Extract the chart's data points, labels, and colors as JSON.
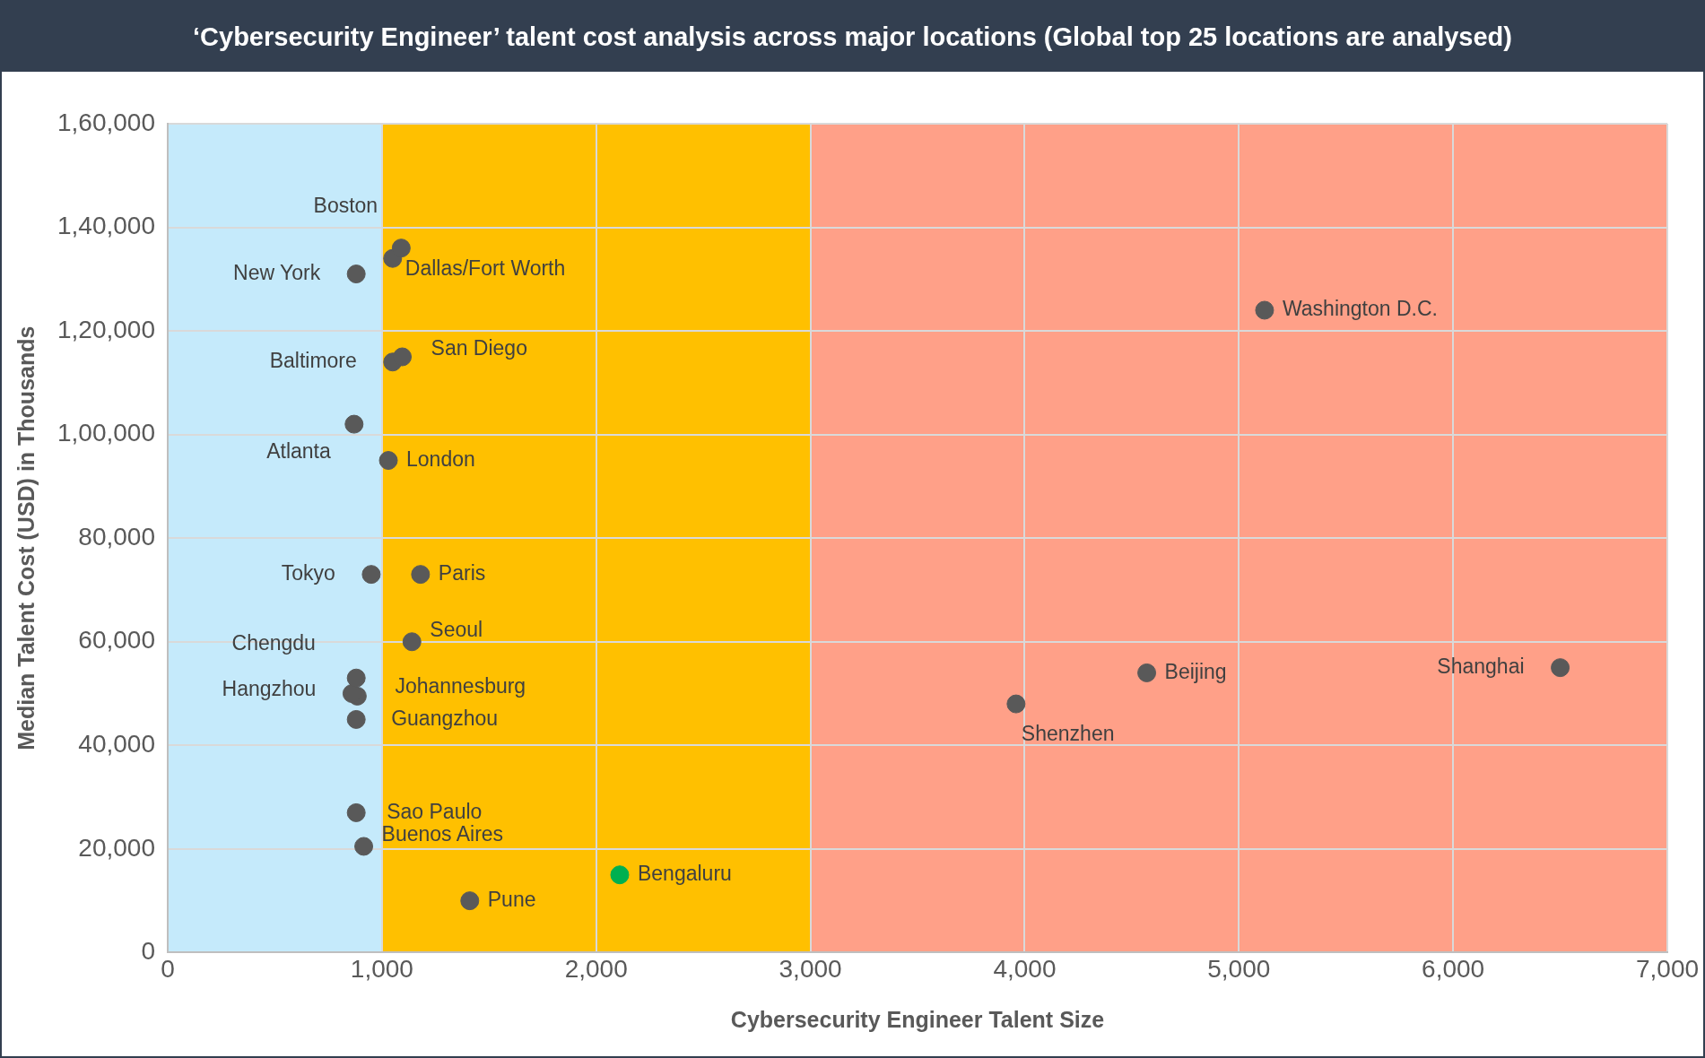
{
  "chart_data": {
    "type": "scatter",
    "title": "‘Cybersecurity Engineer’ talent cost analysis across major locations (Global top 25 locations are analysed)",
    "xlabel": "Cybersecurity Engineer Talent Size",
    "ylabel": "Median Talent Cost (USD) in Thousands",
    "xlim": [
      0,
      7000
    ],
    "xticks": [
      {
        "value": 0,
        "label": "0"
      },
      {
        "value": 1000,
        "label": "1,000"
      },
      {
        "value": 2000,
        "label": "2,000"
      },
      {
        "value": 3000,
        "label": "3,000"
      },
      {
        "value": 4000,
        "label": "4,000"
      },
      {
        "value": 5000,
        "label": "5,000"
      },
      {
        "value": 6000,
        "label": "6,000"
      },
      {
        "value": 7000,
        "label": "7,000"
      }
    ],
    "ylim": [
      0,
      160000
    ],
    "yticks": [
      {
        "value": 0,
        "label": "0"
      },
      {
        "value": 20000,
        "label": "20,000"
      },
      {
        "value": 40000,
        "label": "40,000"
      },
      {
        "value": 60000,
        "label": "60,000"
      },
      {
        "value": 80000,
        "label": "80,000"
      },
      {
        "value": 100000,
        "label": "1,00,000"
      },
      {
        "value": 120000,
        "label": "1,20,000"
      },
      {
        "value": 140000,
        "label": "1,40,000"
      },
      {
        "value": 160000,
        "label": "1,60,000"
      }
    ],
    "grid": true,
    "legend": false,
    "marker": "circle",
    "bands": [
      {
        "axis": "x",
        "from": 0,
        "to": 1000,
        "color": "#c5eafb"
      },
      {
        "axis": "x",
        "from": 1000,
        "to": 3000,
        "color": "#ffc000"
      },
      {
        "axis": "x",
        "from": 3000,
        "to": 7000,
        "color": "#ffa088"
      }
    ],
    "series": [
      {
        "name": "Boston",
        "color": "#595959",
        "x": [
          1090
        ],
        "values": [
          136000
        ]
      },
      {
        "name": "Dallas/Fort Worth",
        "color": "#595959",
        "x": [
          1050
        ],
        "values": [
          134000
        ]
      },
      {
        "name": "New York",
        "color": "#595959",
        "x": [
          880
        ],
        "values": [
          131000
        ]
      },
      {
        "name": "Washington D.C.",
        "color": "#595959",
        "x": [
          5120
        ],
        "values": [
          124000
        ]
      },
      {
        "name": "San Diego",
        "color": "#595959",
        "x": [
          1095
        ],
        "values": [
          115000
        ]
      },
      {
        "name": "Baltimore",
        "color": "#595959",
        "x": [
          1050
        ],
        "values": [
          114000
        ]
      },
      {
        "name": "Atlanta",
        "color": "#595959",
        "x": [
          870
        ],
        "values": [
          102000
        ]
      },
      {
        "name": "London",
        "color": "#595959",
        "x": [
          1030
        ],
        "values": [
          95000
        ]
      },
      {
        "name": "Tokyo",
        "color": "#595959",
        "x": [
          950
        ],
        "values": [
          73000
        ]
      },
      {
        "name": "Paris",
        "color": "#595959",
        "x": [
          1180
        ],
        "values": [
          73000
        ]
      },
      {
        "name": "Seoul",
        "color": "#595959",
        "x": [
          1140
        ],
        "values": [
          60000
        ]
      },
      {
        "name": "Chengdu",
        "color": "#595959",
        "x": [
          880
        ],
        "values": [
          53000
        ]
      },
      {
        "name": "Hangzhou",
        "color": "#595959",
        "x": [
          860
        ],
        "values": [
          50000
        ]
      },
      {
        "name": "Johannesburg",
        "color": "#595959",
        "x": [
          885
        ],
        "values": [
          49500
        ]
      },
      {
        "name": "Guangzhou",
        "color": "#595959",
        "x": [
          880
        ],
        "values": [
          45000
        ]
      },
      {
        "name": "Sao Paulo",
        "color": "#595959",
        "x": [
          880
        ],
        "values": [
          27000
        ]
      },
      {
        "name": "Buenos Aires",
        "color": "#595959",
        "x": [
          915
        ],
        "values": [
          20500
        ]
      },
      {
        "name": "Pune",
        "color": "#595959",
        "x": [
          1410
        ],
        "values": [
          10000
        ]
      },
      {
        "name": "Bengaluru",
        "color": "#00b050",
        "x": [
          2110
        ],
        "values": [
          15000
        ]
      },
      {
        "name": "Beijing",
        "color": "#595959",
        "x": [
          4570
        ],
        "values": [
          54000
        ]
      },
      {
        "name": "Shenzhen",
        "color": "#595959",
        "x": [
          3960
        ],
        "values": [
          48000
        ]
      },
      {
        "name": "Shanghai",
        "color": "#595959",
        "x": [
          6500
        ],
        "values": [
          55000
        ]
      }
    ]
  }
}
